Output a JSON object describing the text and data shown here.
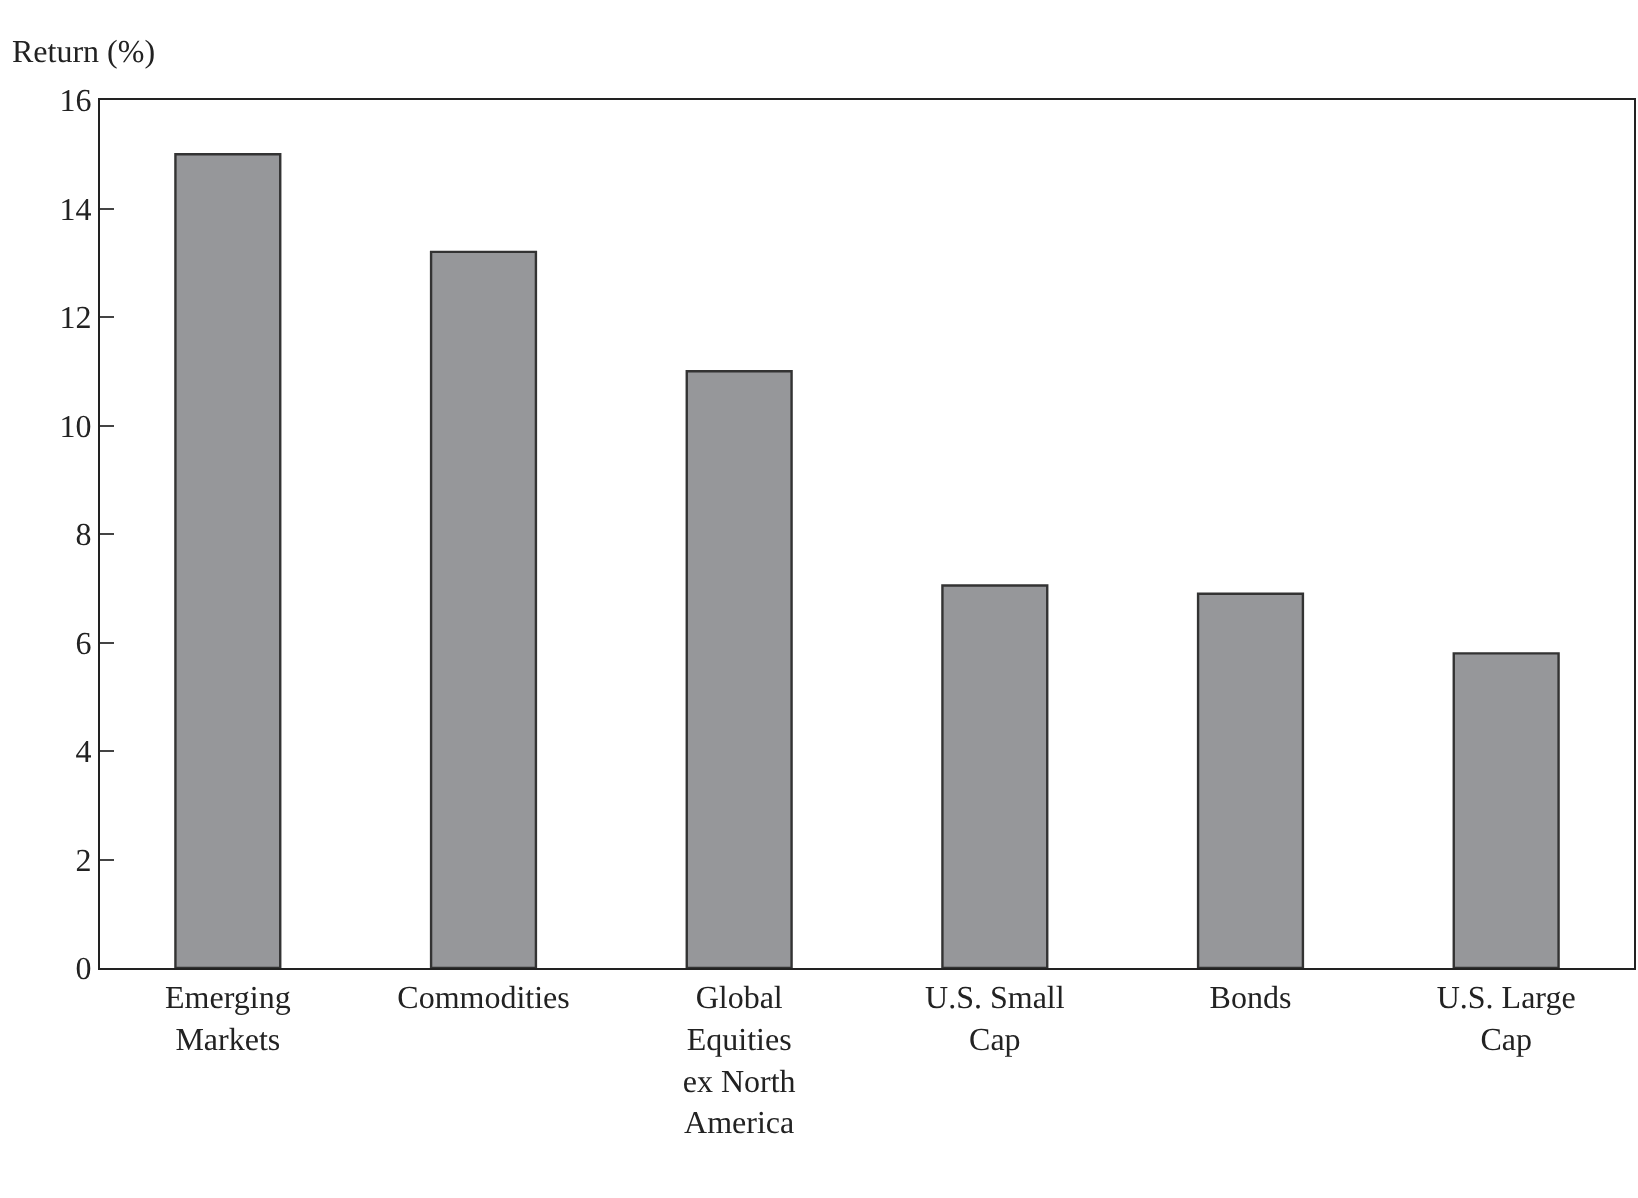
{
  "chart_data": {
    "type": "bar",
    "ylabel": "Return (%)",
    "categories": [
      "Emerging Markets",
      "Commodities",
      "Global Equities ex North America",
      "U.S. Small Cap",
      "Bonds",
      "U.S. Large Cap"
    ],
    "values": [
      15.0,
      13.2,
      11.0,
      7.05,
      6.9,
      5.8
    ],
    "color": "#96979a",
    "ylim": [
      0,
      16
    ],
    "yticks": [
      0,
      2,
      4,
      6,
      8,
      10,
      12,
      14,
      16
    ]
  }
}
